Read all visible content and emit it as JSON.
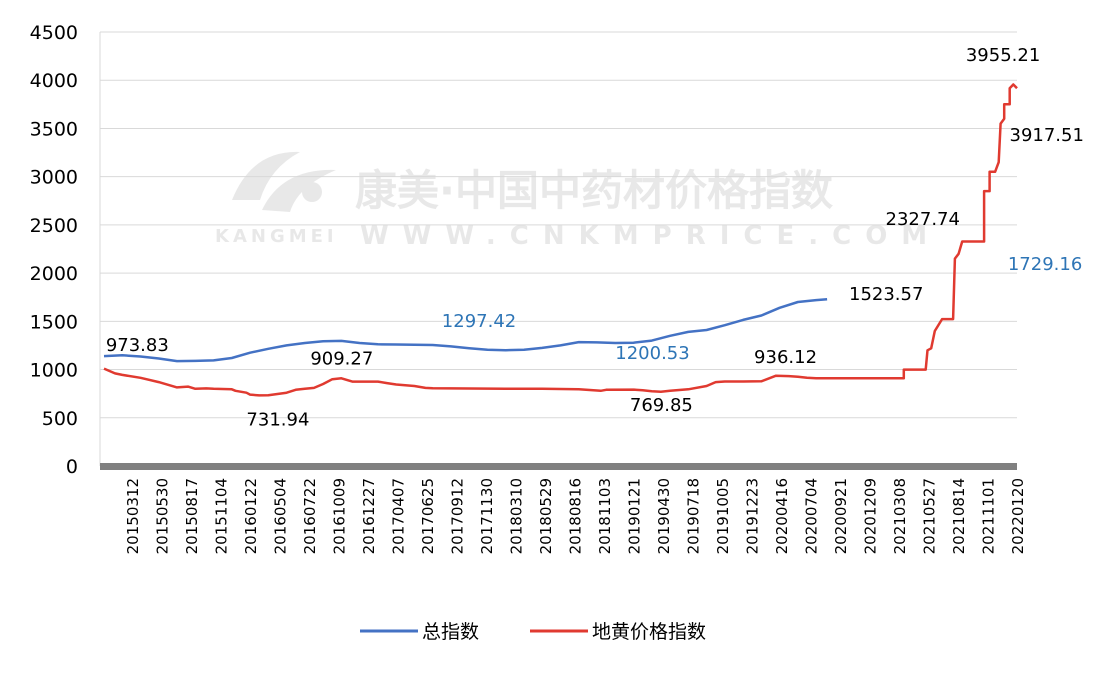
{
  "chart_data": {
    "type": "line",
    "title": "",
    "xlabel": "",
    "ylabel": "",
    "ylim": [
      0,
      4500
    ],
    "yticks": [
      0,
      500,
      1000,
      1500,
      2000,
      2500,
      3000,
      3500,
      4000,
      4500
    ],
    "xticks": [
      "20150312",
      "20150530",
      "20150817",
      "20151104",
      "20160122",
      "20160504",
      "20160722",
      "20161009",
      "20161227",
      "20170407",
      "20170625",
      "20170912",
      "20171130",
      "20180310",
      "20180529",
      "20180816",
      "20181103",
      "20190121",
      "20190430",
      "20190718",
      "20191005",
      "20191223",
      "20200416",
      "20200704",
      "20200921",
      "20201209",
      "20210308",
      "20210527",
      "20210814",
      "20211101",
      "20220120"
    ],
    "grid": "horizontal",
    "legend_position": "bottom",
    "colors": {
      "total": "#4472c4",
      "dihuang": "#e03a30",
      "axis": "#808080",
      "grid": "#d9d9d9"
    },
    "series": [
      {
        "name": "总指数",
        "color": "#4472c4",
        "points": [
          [
            0,
            1140
          ],
          [
            1,
            1148
          ],
          [
            2,
            1135
          ],
          [
            3,
            1115
          ],
          [
            4,
            1088
          ],
          [
            5,
            1090
          ],
          [
            6,
            1095
          ],
          [
            7,
            1120
          ],
          [
            8,
            1175
          ],
          [
            9,
            1215
          ],
          [
            10,
            1250
          ],
          [
            11,
            1275
          ],
          [
            12,
            1293
          ],
          [
            13,
            1297.42
          ],
          [
            14,
            1275
          ],
          [
            15,
            1262
          ],
          [
            16,
            1260
          ],
          [
            17,
            1258
          ],
          [
            18,
            1255
          ],
          [
            19,
            1240
          ],
          [
            20,
            1220
          ],
          [
            21,
            1205
          ],
          [
            22,
            1200.53
          ],
          [
            23,
            1205
          ],
          [
            24,
            1225
          ],
          [
            25,
            1250
          ],
          [
            26,
            1285
          ],
          [
            27,
            1282
          ],
          [
            28,
            1275
          ],
          [
            29,
            1278
          ],
          [
            30,
            1300
          ],
          [
            31,
            1350
          ],
          [
            32,
            1390
          ],
          [
            33,
            1410
          ],
          [
            34,
            1460
          ],
          [
            35,
            1515
          ],
          [
            36,
            1560
          ],
          [
            37,
            1640
          ],
          [
            38,
            1700
          ],
          [
            39,
            1720
          ],
          [
            39.6,
            1729.16
          ]
        ]
      },
      {
        "name": "地黄价格指数",
        "color": "#e03a30",
        "points": [
          [
            0,
            1010
          ],
          [
            0.6,
            960
          ],
          [
            1,
            945
          ],
          [
            2,
            915
          ],
          [
            3,
            870
          ],
          [
            4,
            815
          ],
          [
            4.6,
            823
          ],
          [
            5,
            800
          ],
          [
            5.6,
            805
          ],
          [
            6,
            800
          ],
          [
            7,
            795
          ],
          [
            7.2,
            780
          ],
          [
            7.8,
            760
          ],
          [
            8,
            740
          ],
          [
            8.5,
            731.94
          ],
          [
            9,
            733
          ],
          [
            10,
            760
          ],
          [
            10.5,
            790
          ],
          [
            11,
            800
          ],
          [
            11.5,
            810
          ],
          [
            12,
            850
          ],
          [
            12.5,
            900
          ],
          [
            13,
            909.27
          ],
          [
            13.6,
            875
          ],
          [
            14,
            875
          ],
          [
            15,
            875
          ],
          [
            15.5,
            860
          ],
          [
            16,
            845
          ],
          [
            17,
            830
          ],
          [
            17.6,
            810
          ],
          [
            18,
            806
          ],
          [
            20,
            804
          ],
          [
            22,
            802
          ],
          [
            24,
            800
          ],
          [
            26,
            795
          ],
          [
            27.2,
            780
          ],
          [
            27.5,
            790
          ],
          [
            29,
            792
          ],
          [
            29.5,
            785
          ],
          [
            30,
            775
          ],
          [
            30.5,
            769.85
          ],
          [
            31,
            780
          ],
          [
            32,
            795
          ],
          [
            33,
            830
          ],
          [
            33.5,
            870
          ],
          [
            34,
            876
          ],
          [
            35,
            876
          ],
          [
            36,
            878
          ],
          [
            36.8,
            936.12
          ],
          [
            37.5,
            932
          ],
          [
            38,
            925
          ],
          [
            38.5,
            915
          ],
          [
            39,
            910
          ],
          [
            41,
            910
          ],
          [
            43,
            910
          ],
          [
            43.8,
            910
          ],
          [
            43.8,
            1000
          ],
          [
            44,
            1000
          ],
          [
            45,
            1000
          ],
          [
            45.1,
            1200
          ],
          [
            45.3,
            1220
          ],
          [
            45.5,
            1400
          ],
          [
            45.9,
            1523.57
          ],
          [
            46.3,
            1523.57
          ],
          [
            46.5,
            1523.57
          ],
          [
            46.6,
            2150
          ],
          [
            46.8,
            2200
          ],
          [
            47,
            2327.74
          ],
          [
            48,
            2327.74
          ],
          [
            48.2,
            2327.74
          ],
          [
            48.2,
            2850
          ],
          [
            48.5,
            2850
          ],
          [
            48.5,
            3050
          ],
          [
            48.8,
            3050
          ],
          [
            49,
            3150
          ],
          [
            49.1,
            3550
          ],
          [
            49.3,
            3600
          ],
          [
            49.3,
            3750
          ],
          [
            49.6,
            3750
          ],
          [
            49.6,
            3917.51
          ],
          [
            49.8,
            3955.21
          ],
          [
            50,
            3917.51
          ]
        ]
      }
    ],
    "annotations": [
      {
        "label": "973.83",
        "color": "#000000",
        "x": 0.1,
        "y": 1190
      },
      {
        "label": "731.94",
        "color": "#000000",
        "x": 7.8,
        "y": 420
      },
      {
        "label": "909.27",
        "color": "#000000",
        "x": 11.3,
        "y": 1050
      },
      {
        "label": "1297.42",
        "color": "#2e75b6",
        "x": 18.5,
        "y": 1440
      },
      {
        "label": "1200.53",
        "color": "#2e75b6",
        "x": 28,
        "y": 1110
      },
      {
        "label": "769.85",
        "color": "#000000",
        "x": 28.8,
        "y": 570
      },
      {
        "label": "936.12",
        "color": "#000000",
        "x": 35.6,
        "y": 1070
      },
      {
        "label": "1523.57",
        "color": "#000000",
        "x": 40.8,
        "y": 1720
      },
      {
        "label": "2327.74",
        "color": "#000000",
        "x": 42.8,
        "y": 2500
      },
      {
        "label": "1729.16",
        "color": "#2e75b6",
        "x": 49.5,
        "y": 2030
      },
      {
        "label": "3917.51",
        "color": "#000000",
        "x": 50,
        "y": 3370
      },
      {
        "label": "3955.21",
        "color": "#000000",
        "x": 47.2,
        "y": 4200
      }
    ],
    "watermark": {
      "line1": "康美·中国中药材价格指数",
      "line2": "WWW.CNKMPRICE.COM",
      "logo_text": "KANGMEI"
    }
  }
}
